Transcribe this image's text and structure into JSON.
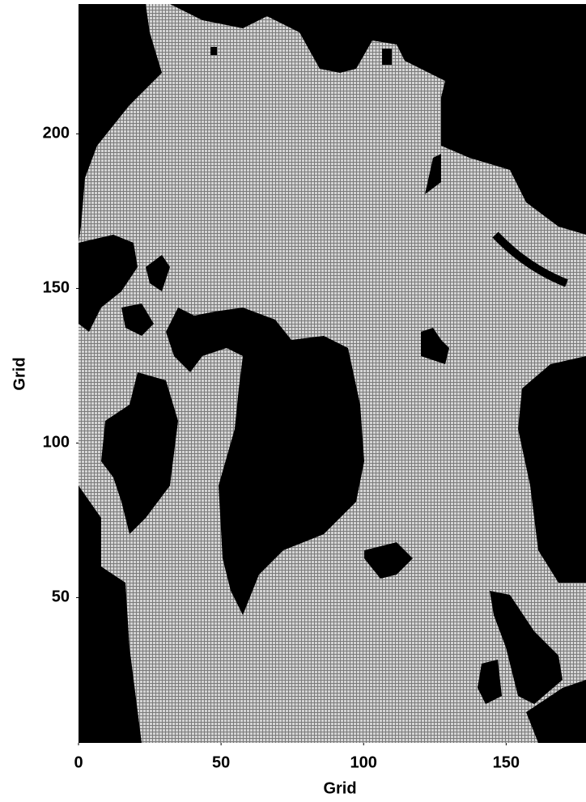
{
  "chart_data": {
    "type": "image",
    "x_label": "Grid",
    "y_label": "Grid",
    "xlim": [
      0,
      178
    ],
    "ylim": [
      3,
      242
    ],
    "xticks": [
      0,
      50,
      100,
      150
    ],
    "yticks": [
      50,
      100,
      150,
      200
    ]
  }
}
